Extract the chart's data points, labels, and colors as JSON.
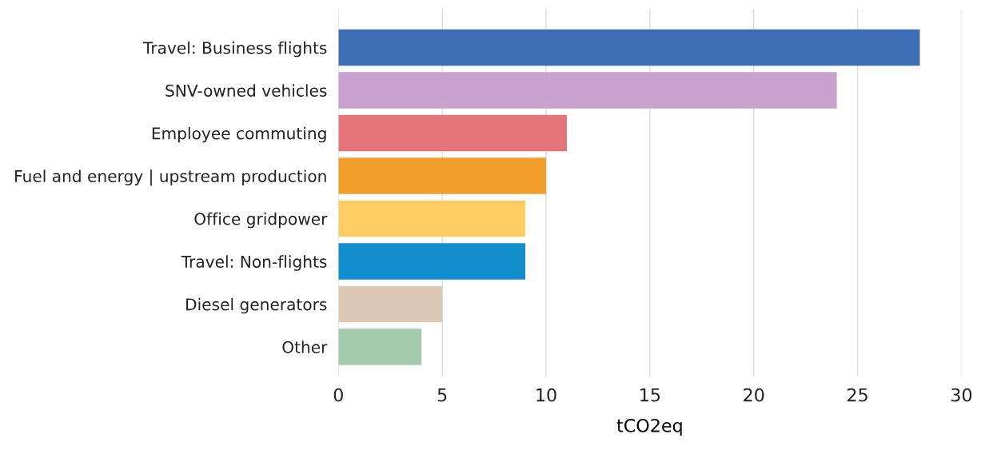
{
  "chart_data": {
    "type": "bar",
    "orientation": "horizontal",
    "xlabel": "tCO2eq",
    "categories": [
      "Travel: Business flights",
      "SNV-owned vehicles",
      "Employee commuting",
      "Fuel and energy | upstream production",
      "Office gridpower",
      "Travel: Non-flights",
      "Diesel generators",
      "Other"
    ],
    "values": [
      28,
      24,
      11,
      10,
      9,
      9,
      5,
      4
    ],
    "colors": [
      "#3d6db5",
      "#c8a2cd",
      "#e6747b",
      "#f29e2c",
      "#fdcd63",
      "#128ecd",
      "#dccab4",
      "#a4cbab"
    ],
    "xlim": [
      0,
      30
    ],
    "xticks": [
      0,
      5,
      10,
      15,
      20,
      25,
      30
    ],
    "grid": "x"
  }
}
